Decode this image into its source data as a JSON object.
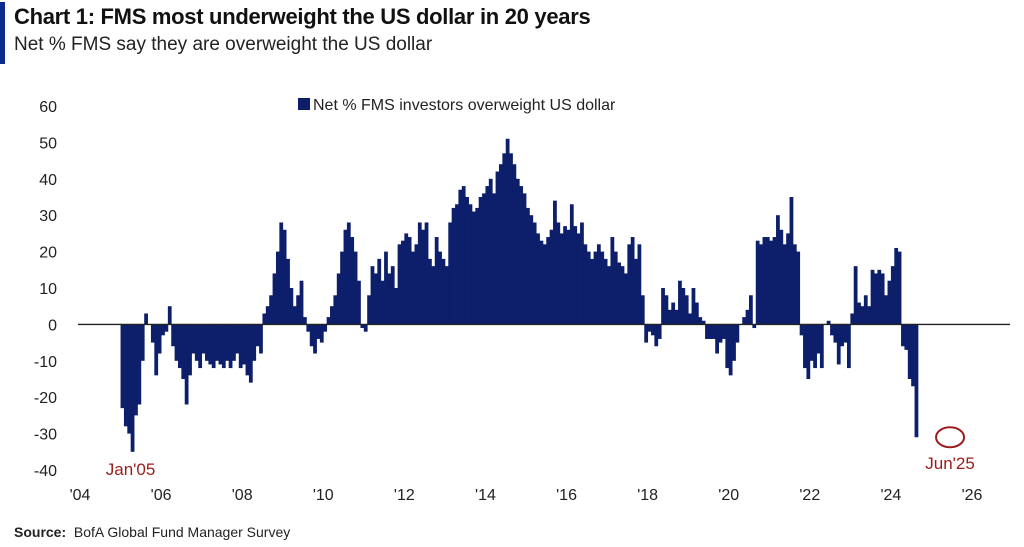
{
  "header": {
    "title": "Chart 1: FMS most underweight the US dollar in 20 years",
    "subtitle": "Net % FMS say they are overweight the US dollar"
  },
  "footer": {
    "source_label": "Source:",
    "source_text": "BofA Global Fund Manager Survey"
  },
  "colors": {
    "bar": "#0d1f6b",
    "accent": "#0b2c8c",
    "annotation": "#9b1b1b"
  },
  "chart_data": {
    "type": "bar",
    "title": "Chart 1: FMS most underweight the US dollar in 20 years",
    "subtitle": "Net % FMS say they are overweight the US dollar",
    "xlabel": "",
    "ylabel": "",
    "ylim": [
      -40,
      60
    ],
    "yticks": [
      "60",
      "50",
      "40",
      "30",
      "20",
      "10",
      "0",
      "-10",
      "-20",
      "-30",
      "-40"
    ],
    "xticks": [
      "'04",
      "'06",
      "'08",
      "'10",
      "'12",
      "'14",
      "'16",
      "'18",
      "'20",
      "'22",
      "'24",
      "'26"
    ],
    "xlim": [
      "2004-01",
      "2026-06"
    ],
    "legend": {
      "position": "top-center",
      "label": "Net % FMS investors overweight US dollar"
    },
    "grid": false,
    "annotations": [
      {
        "text": "Jan'05",
        "x": "2005-01"
      },
      {
        "text": "Jun'25",
        "x": "2025-06",
        "circled": true
      }
    ],
    "series": [
      {
        "name": "Net % FMS investors overweight US dollar",
        "start": "2005-01",
        "frequency": "monthly",
        "values": [
          -23,
          -28,
          -30,
          -35,
          -25,
          -22,
          -10,
          3,
          0,
          -5,
          -14,
          -8,
          -3,
          -2,
          5,
          -6,
          -10,
          -12,
          -15,
          -22,
          -14,
          -8,
          -10,
          -12,
          -8,
          -10,
          -11,
          -12,
          -10,
          -11,
          -12,
          -10,
          -12,
          -10,
          -8,
          -12,
          -11,
          -14,
          -16,
          -10,
          -6,
          -8,
          3,
          5,
          8,
          14,
          20,
          28,
          26,
          18,
          10,
          5,
          8,
          12,
          2,
          -2,
          -6,
          -8,
          -4,
          -5,
          -2,
          2,
          5,
          8,
          14,
          20,
          26,
          28,
          24,
          20,
          12,
          -1,
          -2,
          8,
          16,
          14,
          18,
          12,
          20,
          14,
          16,
          10,
          22,
          23,
          25,
          24,
          20,
          22,
          28,
          26,
          28,
          18,
          16,
          24,
          20,
          18,
          16,
          28,
          32,
          33,
          37,
          38,
          35,
          33,
          31,
          32,
          35,
          36,
          38,
          40,
          36,
          42,
          44,
          47,
          51,
          47,
          44,
          40,
          38,
          36,
          32,
          30,
          28,
          25,
          23,
          22,
          24,
          26,
          34,
          28,
          25,
          27,
          26,
          33,
          27,
          25,
          28,
          22,
          20,
          18,
          20,
          22,
          20,
          18,
          16,
          24,
          20,
          17,
          16,
          14,
          22,
          24,
          18,
          22,
          8,
          -5,
          -2,
          -3,
          -6,
          -4,
          10,
          8,
          4,
          6,
          4,
          12,
          10,
          8,
          3,
          10,
          6,
          2,
          1,
          -4,
          -4,
          -4,
          -8,
          -5,
          -4,
          -12,
          -14,
          -10,
          -5,
          0,
          2,
          4,
          8,
          -1,
          23,
          22,
          24,
          24,
          23,
          24,
          30,
          26,
          22,
          25,
          35,
          22,
          20,
          -3,
          -12,
          -15,
          -10,
          -12,
          -8,
          -12,
          0,
          1,
          -3,
          -5,
          -11,
          -6,
          -5,
          -12,
          3,
          16,
          6,
          5,
          8,
          5,
          15,
          14,
          15,
          14,
          8,
          12,
          16,
          21,
          20,
          -6,
          -7,
          -15,
          -17,
          -31
        ]
      }
    ]
  }
}
